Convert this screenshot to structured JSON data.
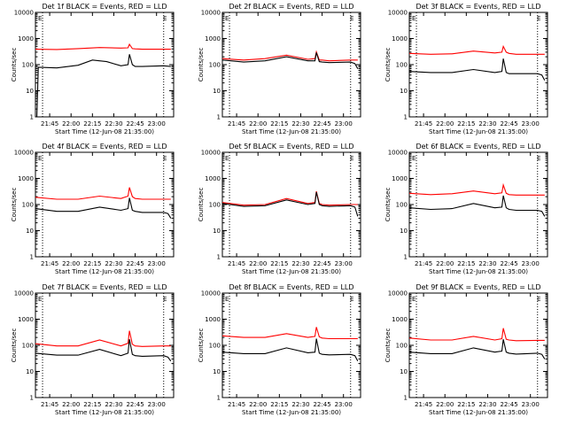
{
  "common": {
    "xlabel": "Start Time (12-Jun-08 21:35:00)",
    "ylabel": "Counts/sec",
    "y_scale": "log",
    "ylim": [
      1,
      10000
    ],
    "y_tick_labels": [
      "1",
      "10",
      "100",
      "1000",
      "10000"
    ],
    "x_tick_labels": [
      "21:45",
      "22:00",
      "22:15",
      "22:30",
      "22:45",
      "23:00"
    ],
    "xlim": [
      "21:35",
      "23:12"
    ],
    "corner_marks": [
      "E",
      "E"
    ],
    "colors": {
      "events": "#000000",
      "lld": "#ff0000"
    },
    "grid": false
  },
  "chart_data": [
    {
      "type": "line",
      "title": "Det 1f BLACK = Events, RED = LLD",
      "series": [
        {
          "color": "#ff0000",
          "x": [
            "21:35",
            "21:50",
            "22:05",
            "22:20",
            "22:35",
            "22:40",
            "22:41",
            "22:43",
            "22:45",
            "22:50",
            "23:05",
            "23:10"
          ],
          "values": [
            390,
            380,
            410,
            450,
            430,
            440,
            600,
            410,
            400,
            390,
            390,
            390
          ]
        },
        {
          "color": "#000000",
          "x": [
            "21:36",
            "21:37",
            "21:50",
            "22:05",
            "22:15",
            "22:25",
            "22:35",
            "22:40",
            "22:41",
            "22:43",
            "22:45",
            "22:50",
            "23:05",
            "23:10"
          ],
          "values": [
            1,
            80,
            75,
            95,
            150,
            130,
            90,
            100,
            250,
            100,
            85,
            85,
            90,
            85
          ]
        }
      ]
    },
    {
      "type": "line",
      "title": "Det 2f BLACK = Events, RED = LLD",
      "series": [
        {
          "color": "#ff0000",
          "x": [
            "21:35",
            "21:50",
            "22:05",
            "22:20",
            "22:35",
            "22:40",
            "22:41",
            "22:43",
            "22:45",
            "22:50",
            "23:05",
            "23:10"
          ],
          "values": [
            170,
            150,
            170,
            230,
            160,
            170,
            310,
            150,
            150,
            140,
            150,
            150
          ]
        },
        {
          "color": "#000000",
          "x": [
            "21:35",
            "21:50",
            "22:05",
            "22:20",
            "22:35",
            "22:40",
            "22:41",
            "22:43",
            "22:45",
            "22:50",
            "23:05",
            "23:08",
            "23:10"
          ],
          "values": [
            150,
            125,
            140,
            200,
            140,
            140,
            290,
            130,
            125,
            120,
            125,
            110,
            70
          ]
        }
      ]
    },
    {
      "type": "line",
      "title": "Det 3f BLACK = Events, RED = LLD",
      "series": [
        {
          "color": "#ff0000",
          "x": [
            "21:35",
            "21:50",
            "22:05",
            "22:20",
            "22:35",
            "22:40",
            "22:41",
            "22:43",
            "22:45",
            "22:50",
            "23:05",
            "23:10"
          ],
          "values": [
            270,
            250,
            260,
            330,
            280,
            300,
            500,
            300,
            270,
            250,
            250,
            250
          ]
        },
        {
          "color": "#000000",
          "x": [
            "21:35",
            "21:50",
            "22:05",
            "22:20",
            "22:35",
            "22:40",
            "22:41",
            "22:43",
            "22:45",
            "22:50",
            "23:05",
            "23:08",
            "23:10"
          ],
          "values": [
            55,
            50,
            50,
            65,
            50,
            55,
            170,
            50,
            45,
            45,
            45,
            40,
            25
          ]
        }
      ]
    },
    {
      "type": "line",
      "title": "Det 4f BLACK = Events, RED = LLD",
      "series": [
        {
          "color": "#ff0000",
          "x": [
            "21:35",
            "21:50",
            "22:05",
            "22:20",
            "22:35",
            "22:40",
            "22:41",
            "22:43",
            "22:45",
            "22:50",
            "23:05",
            "23:10"
          ],
          "values": [
            190,
            160,
            160,
            210,
            170,
            210,
            450,
            200,
            170,
            160,
            160,
            160
          ]
        },
        {
          "color": "#000000",
          "x": [
            "21:35",
            "21:50",
            "22:05",
            "22:20",
            "22:35",
            "22:40",
            "22:41",
            "22:43",
            "22:45",
            "22:50",
            "23:05",
            "23:08",
            "23:10"
          ],
          "values": [
            70,
            55,
            55,
            80,
            60,
            70,
            180,
            60,
            55,
            50,
            50,
            45,
            30
          ]
        }
      ]
    },
    {
      "type": "line",
      "title": "Det 5f BLACK = Events, RED = LLD",
      "series": [
        {
          "color": "#ff0000",
          "x": [
            "21:35",
            "21:50",
            "22:05",
            "22:20",
            "22:35",
            "22:40",
            "22:41",
            "22:43",
            "22:45",
            "22:50",
            "23:05",
            "23:10"
          ],
          "values": [
            120,
            95,
            100,
            170,
            110,
            120,
            320,
            110,
            100,
            95,
            100,
            100
          ]
        },
        {
          "color": "#000000",
          "x": [
            "21:35",
            "21:50",
            "22:05",
            "22:20",
            "22:35",
            "22:40",
            "22:41",
            "22:43",
            "22:45",
            "22:50",
            "23:05",
            "23:08",
            "23:10"
          ],
          "values": [
            110,
            85,
            90,
            150,
            100,
            110,
            300,
            100,
            90,
            85,
            90,
            80,
            35
          ]
        }
      ]
    },
    {
      "type": "line",
      "title": "Det 6f BLACK = Events, RED = LLD",
      "series": [
        {
          "color": "#ff0000",
          "x": [
            "21:35",
            "21:50",
            "22:05",
            "22:20",
            "22:35",
            "22:40",
            "22:41",
            "22:43",
            "22:45",
            "22:50",
            "23:05",
            "23:10"
          ],
          "values": [
            270,
            240,
            260,
            330,
            260,
            280,
            560,
            270,
            240,
            230,
            230,
            230
          ]
        },
        {
          "color": "#000000",
          "x": [
            "21:35",
            "21:50",
            "22:05",
            "22:20",
            "22:35",
            "22:40",
            "22:41",
            "22:43",
            "22:45",
            "22:50",
            "23:05",
            "23:08",
            "23:10"
          ],
          "values": [
            75,
            65,
            70,
            110,
            75,
            80,
            220,
            75,
            65,
            60,
            60,
            55,
            35
          ]
        }
      ]
    },
    {
      "type": "line",
      "title": "Det 7f BLACK = Events, RED = LLD",
      "series": [
        {
          "color": "#ff0000",
          "x": [
            "21:35",
            "21:50",
            "22:05",
            "22:20",
            "22:35",
            "22:40",
            "22:41",
            "22:43",
            "22:45",
            "22:50",
            "23:05",
            "23:10"
          ],
          "values": [
            115,
            95,
            95,
            160,
            95,
            120,
            360,
            110,
            95,
            90,
            95,
            95
          ]
        },
        {
          "color": "#000000",
          "x": [
            "21:35",
            "21:50",
            "22:05",
            "22:20",
            "22:35",
            "22:40",
            "22:41",
            "22:43",
            "22:45",
            "22:50",
            "23:05",
            "23:08",
            "23:10"
          ],
          "values": [
            50,
            42,
            42,
            70,
            40,
            50,
            170,
            45,
            40,
            38,
            40,
            35,
            25
          ]
        }
      ]
    },
    {
      "type": "line",
      "title": "Det 8f BLACK = Events, RED = LLD",
      "series": [
        {
          "color": "#ff0000",
          "x": [
            "21:35",
            "21:50",
            "22:05",
            "22:20",
            "22:35",
            "22:40",
            "22:41",
            "22:43",
            "22:45",
            "22:50",
            "23:05",
            "23:10"
          ],
          "values": [
            230,
            200,
            200,
            280,
            200,
            220,
            500,
            210,
            190,
            180,
            180,
            180
          ]
        },
        {
          "color": "#000000",
          "x": [
            "21:35",
            "21:50",
            "22:05",
            "22:20",
            "22:35",
            "22:40",
            "22:41",
            "22:43",
            "22:45",
            "22:50",
            "23:05",
            "23:08",
            "23:10"
          ],
          "values": [
            55,
            48,
            48,
            80,
            52,
            55,
            180,
            50,
            45,
            43,
            45,
            40,
            25
          ]
        }
      ]
    },
    {
      "type": "line",
      "title": "Det 9f BLACK = Events, RED = LLD",
      "series": [
        {
          "color": "#ff0000",
          "x": [
            "21:35",
            "21:50",
            "22:05",
            "22:20",
            "22:35",
            "22:40",
            "22:41",
            "22:43",
            "22:45",
            "22:50",
            "23:05",
            "23:10"
          ],
          "values": [
            190,
            160,
            160,
            220,
            160,
            180,
            450,
            170,
            160,
            150,
            155,
            155
          ]
        },
        {
          "color": "#000000",
          "x": [
            "21:35",
            "21:50",
            "22:05",
            "22:20",
            "22:35",
            "22:40",
            "22:41",
            "22:43",
            "22:45",
            "22:50",
            "23:05",
            "23:08",
            "23:10"
          ],
          "values": [
            55,
            48,
            48,
            80,
            55,
            60,
            170,
            55,
            50,
            46,
            50,
            45,
            30
          ]
        }
      ]
    }
  ]
}
